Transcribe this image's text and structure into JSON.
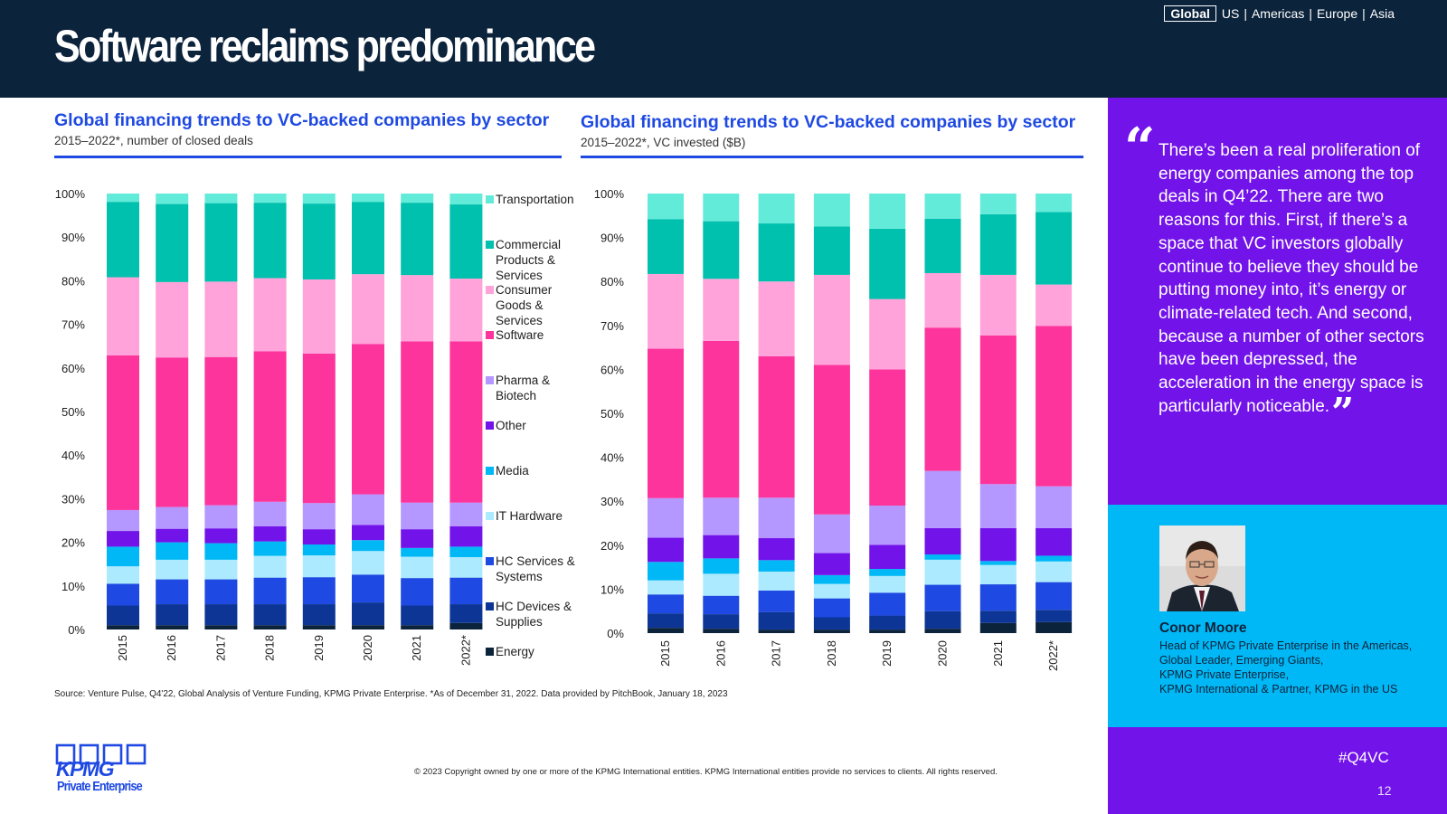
{
  "header": {
    "title": "Software reclaims predominance",
    "regions": [
      "Global",
      "US",
      "Americas",
      "Europe",
      "Asia"
    ],
    "active_region": "Global",
    "background_color": "#0c233c"
  },
  "sector_legend": {
    "order_bottom_to_top": [
      "Energy",
      "HC Devices & Supplies",
      "HC Services & Systems",
      "IT Hardware",
      "Media",
      "Other",
      "Pharma & Biotech",
      "Software",
      "Consumer Goods & Services",
      "Commercial Products & Services",
      "Transportation"
    ],
    "labels_top_to_bottom": [
      [
        "Transportation"
      ],
      [
        "Commercial",
        "Products &",
        "Services"
      ],
      [
        "Consumer",
        "Goods &",
        "Services"
      ],
      [
        "Software"
      ],
      [
        "Pharma &",
        "Biotech"
      ],
      [
        "Other"
      ],
      [
        "Media"
      ],
      [
        "IT Hardware"
      ],
      [
        "HC Services &",
        "Systems"
      ],
      [
        "HC Devices &",
        "Supplies"
      ],
      [
        "Energy"
      ]
    ],
    "colors": {
      "Energy": "#0c233c",
      "HC Devices & Supplies": "#0c3595",
      "HC Services & Systems": "#1e49e2",
      "IT Hardware": "#aceaff",
      "Media": "#00b8f5",
      "Other": "#7213ea",
      "Pharma & Biotech": "#b497ff",
      "Software": "#fd349c",
      "Consumer Goods & Services": "#ffa3da",
      "Commercial Products & Services": "#00c0ae",
      "Transportation": "#63ebda"
    }
  },
  "chart_data": [
    {
      "type": "bar",
      "stacked": true,
      "percent": true,
      "title": "Global financing trends to VC-backed companies by sector",
      "subtitle": "2015–2022*, number of closed deals",
      "categories": [
        "2015",
        "2016",
        "2017",
        "2018",
        "2019",
        "2020",
        "2021",
        "2022*"
      ],
      "y_ticks": [
        "0%",
        "10%",
        "20%",
        "30%",
        "40%",
        "50%",
        "60%",
        "70%",
        "80%",
        "90%",
        "100%"
      ],
      "ylim": [
        0,
        100
      ],
      "legend_position": "right",
      "series": [
        {
          "name": "Energy",
          "values": [
            1.0,
            1.0,
            1.0,
            1.0,
            1.0,
            1.0,
            1.0,
            1.5
          ]
        },
        {
          "name": "HC Devices & Supplies",
          "values": [
            4.5,
            4.8,
            4.8,
            4.8,
            4.8,
            5.2,
            4.5,
            4.3
          ]
        },
        {
          "name": "HC Services & Systems",
          "values": [
            5.0,
            5.7,
            5.7,
            6.1,
            6.2,
            6.4,
            6.3,
            6.1
          ]
        },
        {
          "name": "IT Hardware",
          "values": [
            4.0,
            4.5,
            4.5,
            5.0,
            5.0,
            5.4,
            4.9,
            4.7
          ]
        },
        {
          "name": "Media",
          "values": [
            4.5,
            4.0,
            3.8,
            3.3,
            2.5,
            2.5,
            2.0,
            2.4
          ]
        },
        {
          "name": "Other",
          "values": [
            3.6,
            3.1,
            3.4,
            3.5,
            3.5,
            3.5,
            4.3,
            4.7
          ]
        },
        {
          "name": "Pharma & Biotech",
          "values": [
            4.8,
            5.0,
            5.3,
            5.6,
            6.0,
            7.0,
            6.1,
            5.4
          ]
        },
        {
          "name": "Software",
          "values": [
            35.5,
            34.3,
            34.0,
            34.5,
            34.3,
            34.5,
            37.0,
            37.0
          ]
        },
        {
          "name": "Consumer Goods & Services",
          "values": [
            17.9,
            17.3,
            17.3,
            16.8,
            17.0,
            16.0,
            15.2,
            14.4
          ]
        },
        {
          "name": "Commercial Products & Services",
          "values": [
            17.3,
            17.9,
            18.0,
            17.3,
            17.4,
            16.6,
            16.6,
            17.0
          ]
        },
        {
          "name": "Transportation",
          "values": [
            1.9,
            2.4,
            2.2,
            2.1,
            2.3,
            1.9,
            2.1,
            2.5
          ]
        }
      ]
    },
    {
      "type": "bar",
      "stacked": true,
      "percent": true,
      "title": "Global financing trends to VC-backed companies by sector",
      "subtitle": "2015–2022*, VC invested ($B)",
      "categories": [
        "2015",
        "2016",
        "2017",
        "2018",
        "2019",
        "2020",
        "2021",
        "2022*"
      ],
      "y_ticks": [
        "0%",
        "10%",
        "20%",
        "30%",
        "40%",
        "50%",
        "60%",
        "70%",
        "80%",
        "90%",
        "100%"
      ],
      "ylim": [
        0,
        100
      ],
      "series": [
        {
          "name": "Energy",
          "values": [
            1.2,
            1.0,
            0.8,
            0.8,
            0.8,
            1.0,
            2.3,
            2.5
          ]
        },
        {
          "name": "HC Devices & Supplies",
          "values": [
            3.3,
            3.3,
            4.0,
            2.8,
            3.2,
            4.0,
            2.8,
            2.8
          ]
        },
        {
          "name": "HC Services & Systems",
          "values": [
            4.3,
            4.2,
            4.9,
            4.3,
            5.2,
            6.0,
            6.0,
            6.3
          ]
        },
        {
          "name": "IT Hardware",
          "values": [
            3.2,
            5.0,
            4.3,
            3.3,
            3.8,
            5.7,
            4.4,
            4.7
          ]
        },
        {
          "name": "Media",
          "values": [
            4.2,
            3.5,
            2.6,
            2.0,
            1.6,
            1.2,
            0.9,
            1.3
          ]
        },
        {
          "name": "Other",
          "values": [
            5.5,
            5.3,
            5.0,
            5.0,
            5.5,
            6.0,
            7.5,
            6.3
          ]
        },
        {
          "name": "Pharma & Biotech",
          "values": [
            9.0,
            8.5,
            9.2,
            8.8,
            8.9,
            13.0,
            10.0,
            9.5
          ]
        },
        {
          "name": "Software",
          "values": [
            34.0,
            35.7,
            32.2,
            34.0,
            31.0,
            32.6,
            33.8,
            36.5
          ]
        },
        {
          "name": "Consumer Goods & Services",
          "values": [
            17.0,
            14.1,
            17.0,
            20.5,
            16.0,
            12.4,
            13.8,
            9.4
          ]
        },
        {
          "name": "Commercial Products & Services",
          "values": [
            12.5,
            13.1,
            13.2,
            11.0,
            16.0,
            12.4,
            13.8,
            16.5
          ]
        },
        {
          "name": "Transportation",
          "values": [
            5.8,
            6.3,
            6.8,
            7.5,
            8.0,
            5.7,
            4.7,
            4.2
          ]
        }
      ]
    }
  ],
  "source_note": "Source: Venture Pulse, Q4'22, Global Analysis of Venture Funding, KPMG Private Enterprise. *As of December 31, 2022. Data provided by PitchBook, January 18, 2023",
  "copyright": "© 2023 Copyright owned by one or more of the KPMG International entities. KPMG International entities provide no services to clients. All rights reserved.",
  "logo": {
    "wordmark": "KPMG",
    "sub": "Private Enterprise",
    "color": "#1e49e2"
  },
  "quote": {
    "open_mark": "“",
    "text": "There’s been a real proliferation of energy companies among the top deals in Q4’22. There are two reasons for this. First, if there’s a space that VC investors globally continue to believe they should be putting money into, it’s energy or climate-related tech. And second, because a number of other sectors have been depressed, the acceleration in the energy space is particularly noticeable.",
    "close_mark": "”",
    "panel_color": "#7213ea"
  },
  "person": {
    "name": "Conor Moore",
    "role_lines": [
      "Head of KPMG Private Enterprise in the Americas,",
      "Global Leader, Emerging Giants,",
      "KPMG Private Enterprise,",
      "KPMG International & Partner, KPMG in the US"
    ],
    "panel_color": "#00b8f5"
  },
  "footer": {
    "hashtag": "#Q4VC",
    "page_number": "12"
  }
}
